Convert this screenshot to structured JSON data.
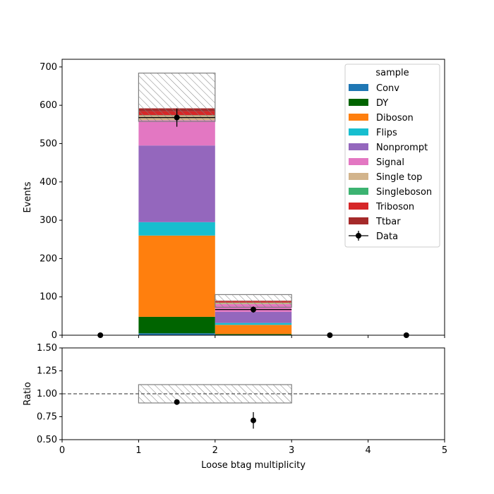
{
  "chart_data": [
    {
      "type": "bar",
      "stacked": true,
      "xlabel": "",
      "ylabel": "Events",
      "xlim": [
        0,
        5
      ],
      "ylim": [
        0,
        720
      ],
      "yticks": [
        0,
        100,
        200,
        300,
        400,
        500,
        600,
        700
      ],
      "bins": [
        [
          0,
          1
        ],
        [
          1,
          2
        ],
        [
          2,
          3
        ],
        [
          3,
          4
        ],
        [
          4,
          5
        ]
      ],
      "legend": {
        "title": "sample",
        "placement": "top-right"
      },
      "series": [
        {
          "name": "Conv",
          "color": "#1f77b4",
          "values": [
            0,
            5,
            1,
            0,
            0
          ]
        },
        {
          "name": "DY",
          "color": "#006400",
          "values": [
            0,
            43,
            2,
            0,
            0
          ]
        },
        {
          "name": "Diboson",
          "color": "#ff7f0e",
          "values": [
            0,
            212,
            24,
            0,
            0
          ]
        },
        {
          "name": "Flips",
          "color": "#17becf",
          "values": [
            0,
            35,
            5,
            0,
            0
          ]
        },
        {
          "name": "Nonprompt",
          "color": "#9467bd",
          "values": [
            0,
            200,
            29,
            0,
            0
          ]
        },
        {
          "name": "Signal",
          "color": "#e377c2",
          "values": [
            0,
            66,
            20,
            0,
            0
          ]
        },
        {
          "name": "Single top",
          "color": "#d2b48c",
          "values": [
            0,
            12,
            3,
            0,
            0
          ]
        },
        {
          "name": "Singleboson",
          "color": "#3cb371",
          "values": [
            0,
            1,
            1,
            0,
            0
          ]
        },
        {
          "name": "Triboson",
          "color": "#d62728",
          "values": [
            0,
            10,
            3,
            0,
            0
          ]
        },
        {
          "name": "Ttbar",
          "color": "#a52a2a",
          "values": [
            0,
            8,
            2,
            0,
            0
          ]
        }
      ],
      "uncertainty": {
        "low": [
          0,
          558,
          73,
          0,
          0
        ],
        "high": [
          0,
          684,
          106,
          0,
          0
        ]
      },
      "data": {
        "name": "Data",
        "color": "#000000",
        "x": [
          0.5,
          1.5,
          2.5,
          3.5,
          4.5
        ],
        "y": [
          0,
          568,
          67,
          0,
          0
        ],
        "yerr": [
          0,
          24,
          8,
          0,
          0
        ]
      }
    },
    {
      "type": "scatter",
      "xlabel": "Loose btag multiplicity",
      "ylabel": "Ratio",
      "xlim": [
        0,
        5
      ],
      "ylim": [
        0.5,
        1.5
      ],
      "xticks": [
        0,
        1,
        2,
        3,
        4,
        5
      ],
      "yticks": [
        0.5,
        0.75,
        1.0,
        1.25,
        1.5
      ],
      "yticklabels": [
        "0.50",
        "0.75",
        "1.00",
        "1.25",
        "1.50"
      ],
      "reference_line": 1.0,
      "uncertainty_band": {
        "x": [
          1,
          3
        ],
        "low": 0.9,
        "high": 1.1
      },
      "points": {
        "x": [
          1.5,
          2.5
        ],
        "y": [
          0.91,
          0.71
        ],
        "yerr": [
          0.03,
          0.09
        ]
      }
    }
  ]
}
